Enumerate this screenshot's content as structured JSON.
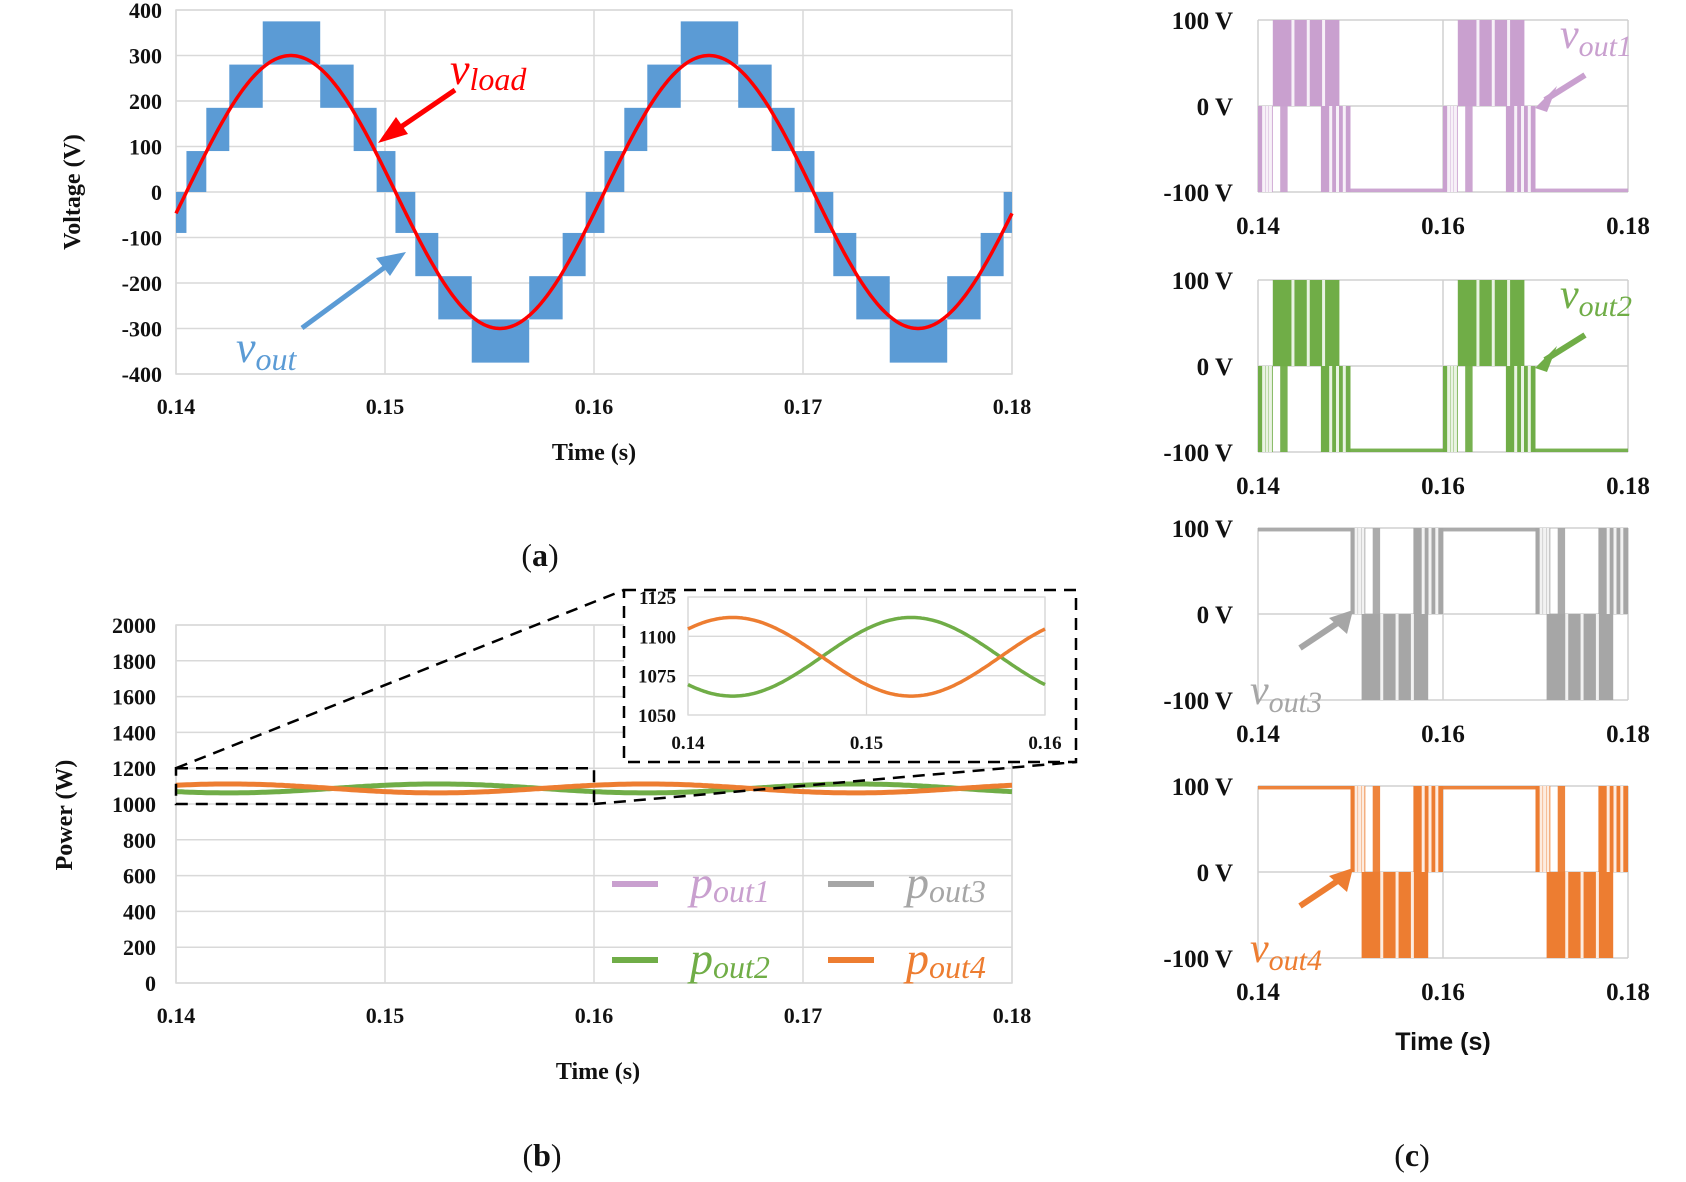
{
  "chart_data": [
    {
      "id": "a",
      "type": "line",
      "caption": "a",
      "xlabel": "Time (s)",
      "ylabel": "Voltage (V)",
      "xlim": [
        0.14,
        0.18
      ],
      "ylim": [
        -400,
        400
      ],
      "xticks": [
        "0.14",
        "0.15",
        "0.16",
        "0.17",
        "0.18"
      ],
      "yticks": [
        "400",
        "300",
        "200",
        "100",
        "0",
        "-100",
        "-200",
        "-300",
        "-400"
      ],
      "grid": true,
      "series": [
        {
          "name": "v_out",
          "label_main": "v",
          "label_sub": "out",
          "color": "#5b9bd5",
          "kind": "multilevel-staircase-pwm",
          "levels": [
            -375,
            -280,
            -185,
            -90,
            0,
            90,
            185,
            280,
            375
          ],
          "frequency_hz": 50
        },
        {
          "name": "v_load",
          "label_main": "v",
          "label_sub": "load",
          "color": "#ff0000",
          "kind": "sine",
          "amplitude": 300,
          "frequency_hz": 50,
          "peak_time": 0.1455
        }
      ]
    },
    {
      "id": "b",
      "type": "line",
      "caption": "b",
      "xlabel": "Time (s)",
      "ylabel": "Power (W)",
      "xlim": [
        0.14,
        0.18
      ],
      "ylim": [
        0,
        2000
      ],
      "xticks": [
        "0.14",
        "0.15",
        "0.16",
        "0.17",
        "0.18"
      ],
      "yticks": [
        "2000",
        "1800",
        "1600",
        "1400",
        "1200",
        "1000",
        "800",
        "600",
        "400",
        "200",
        "0"
      ],
      "grid": true,
      "legend": {
        "placement": "bottom-right",
        "items": [
          {
            "main": "p",
            "sub": "out1",
            "color": "#c9a0cf"
          },
          {
            "main": "p",
            "sub": "out3",
            "color": "#a6a6a6"
          },
          {
            "main": "p",
            "sub": "out2",
            "color": "#70ad47"
          },
          {
            "main": "p",
            "sub": "out4",
            "color": "#ed7d31"
          }
        ]
      },
      "series": [
        {
          "name": "p_out2",
          "color": "#70ad47",
          "mean": 1087,
          "amplitude": 25,
          "period": 0.02,
          "min_time": 0.1425
        },
        {
          "name": "p_out4",
          "color": "#ed7d31",
          "mean": 1087,
          "amplitude": 25,
          "period": 0.02,
          "max_time": 0.1425
        }
      ],
      "zoom_box": {
        "xlim": [
          0.14,
          0.16
        ],
        "ylim": [
          1000,
          1200
        ]
      },
      "inset": {
        "xlim": [
          0.14,
          0.16
        ],
        "ylim": [
          1050,
          1125
        ],
        "xticks": [
          "0.14",
          "0.15",
          "0.16"
        ],
        "yticks": [
          "1125",
          "1100",
          "1075",
          "1050"
        ]
      }
    },
    {
      "id": "c",
      "type": "line",
      "caption": "c",
      "xlabel": "Time (s)",
      "xlim": [
        0.14,
        0.18
      ],
      "ylim": [
        -100,
        100
      ],
      "xticks": [
        "0.14",
        "0.16",
        "0.18"
      ],
      "yticks": [
        "100 V",
        "0 V",
        "-100 V"
      ],
      "subplots": [
        {
          "name": "v_out1",
          "label_main": "v",
          "label_sub": "out1",
          "color": "#c9a0cf",
          "phase": "pos-first"
        },
        {
          "name": "v_out2",
          "label_main": "v",
          "label_sub": "out2",
          "color": "#70ad47",
          "phase": "pos-first"
        },
        {
          "name": "v_out3",
          "label_main": "v",
          "label_sub": "out3",
          "color": "#a6a6a6",
          "phase": "neg-first"
        },
        {
          "name": "v_out4",
          "label_main": "v",
          "label_sub": "out4",
          "color": "#ed7d31",
          "phase": "neg-first"
        }
      ]
    }
  ],
  "captions": {
    "a": "a",
    "b": "b",
    "c": "c"
  }
}
